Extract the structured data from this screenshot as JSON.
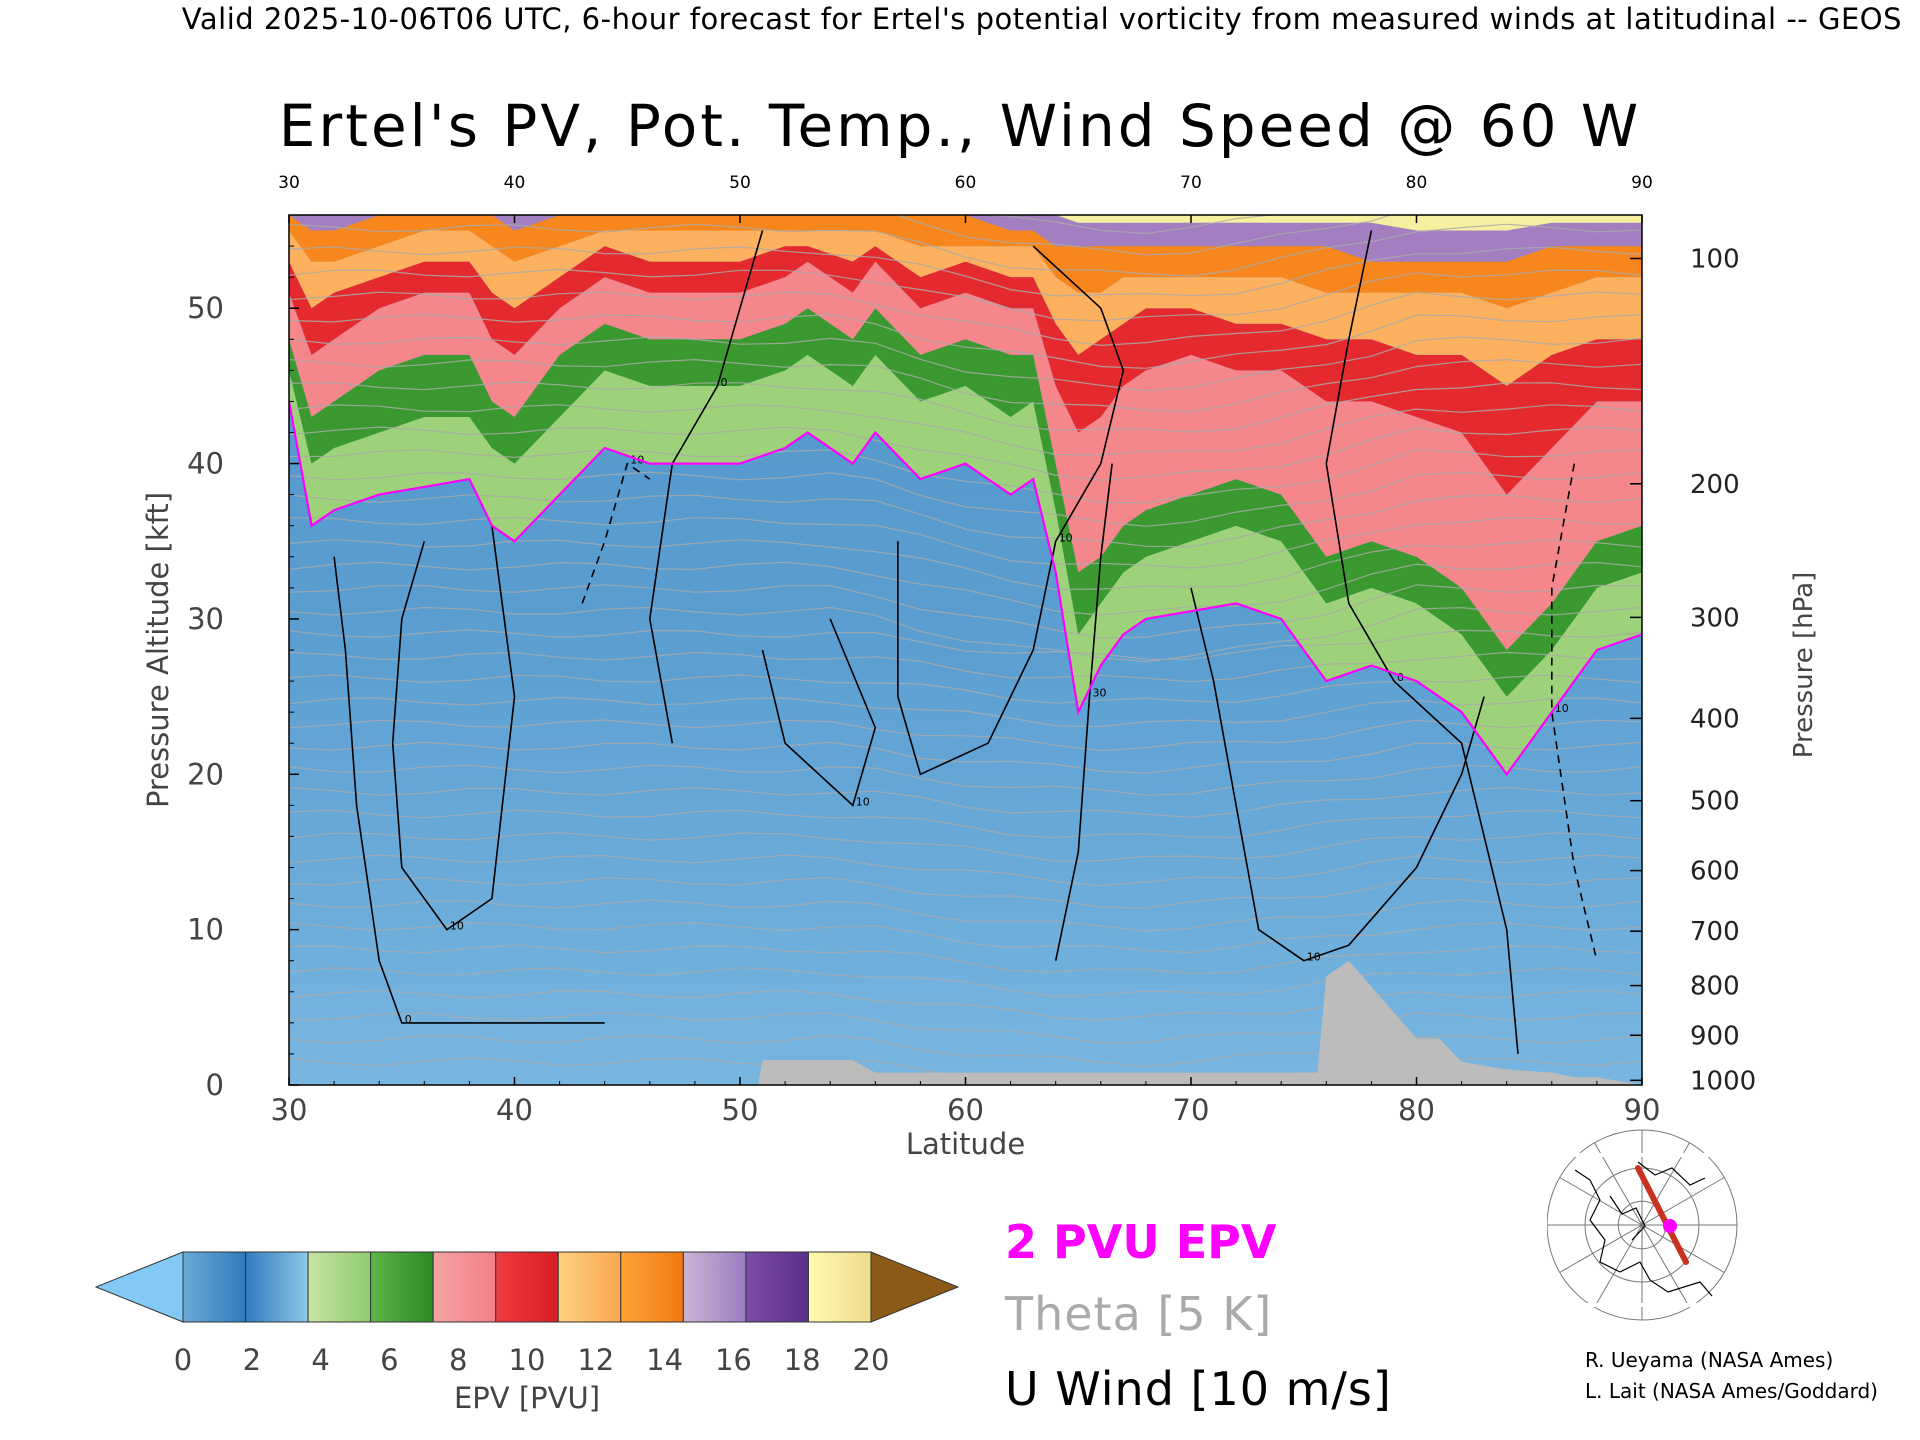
{
  "header": {
    "text": "Valid 2025-10-06T06 UTC, 6-hour forecast for Ertel's potential vorticity from measured winds at latitudinal -- GEOS"
  },
  "chart_data": {
    "type": "heatmap",
    "title": "Ertel's PV, Pot. Temp., Wind Speed @ 60 W",
    "xlabel": "Latitude",
    "ylabel": "Pressure Altitude [kft]",
    "y2label": "Pressure [hPa]",
    "xlim": [
      30,
      90
    ],
    "ylim": [
      0,
      56
    ],
    "x_ticks": [
      30,
      40,
      50,
      60,
      70,
      80,
      90
    ],
    "y_ticks": [
      0,
      10,
      20,
      30,
      40,
      50
    ],
    "pressure_ticks": [
      {
        "label": "100",
        "kft": 53.2
      },
      {
        "label": "200",
        "kft": 38.7
      },
      {
        "label": "300",
        "kft": 30.1
      },
      {
        "label": "400",
        "kft": 23.6
      },
      {
        "label": "500",
        "kft": 18.3
      },
      {
        "label": "600",
        "kft": 13.8
      },
      {
        "label": "700",
        "kft": 9.9
      },
      {
        "label": "800",
        "kft": 6.4
      },
      {
        "label": "900",
        "kft": 3.2
      },
      {
        "label": "1000",
        "kft": 0.3
      }
    ],
    "tropopause_2pvu": {
      "lat": [
        30,
        31,
        32,
        34,
        36,
        38,
        39,
        40,
        42,
        44,
        46,
        48,
        50,
        52,
        53,
        55,
        56,
        58,
        60,
        62,
        63,
        64,
        65,
        66,
        67,
        68,
        70,
        72,
        74,
        76,
        78,
        80,
        82,
        84,
        86,
        88,
        90
      ],
      "kft": [
        44,
        36,
        37,
        38,
        38.5,
        39,
        36,
        35,
        38,
        41,
        40,
        40,
        40,
        41,
        42,
        40,
        42,
        39,
        40,
        38,
        39,
        33,
        24,
        27,
        29,
        30,
        30.5,
        31,
        30,
        26,
        27,
        26,
        24,
        20,
        24,
        28,
        29
      ]
    },
    "epv_bands_kft": [
      {
        "pvu": 4,
        "color": "#9ed27a",
        "top": [
          46,
          40,
          41,
          42,
          43,
          43,
          41,
          40,
          43,
          46,
          45,
          45,
          45,
          46,
          47,
          45,
          47,
          44,
          45,
          43,
          44,
          37,
          29,
          31,
          33,
          34,
          35,
          36,
          35,
          31,
          32,
          31,
          29,
          25,
          28,
          32,
          33
        ]
      },
      {
        "pvu": 6,
        "color": "#3a9a2f",
        "top": [
          48,
          43,
          44,
          46,
          47,
          47,
          44,
          43,
          47,
          49,
          48,
          48,
          48,
          49,
          50,
          48,
          50,
          47,
          48,
          47,
          47,
          40,
          33,
          34,
          36,
          37,
          38,
          39,
          38,
          34,
          35,
          34,
          32,
          28,
          31,
          35,
          36
        ]
      },
      {
        "pvu": 8,
        "color": "#f4868c",
        "top": [
          51,
          47,
          48,
          50,
          51,
          51,
          48,
          47,
          50,
          52,
          51,
          51,
          51,
          52,
          53,
          51,
          53,
          50,
          51,
          50,
          50,
          45,
          42,
          43,
          45,
          46,
          47,
          46,
          46,
          44,
          44,
          43,
          42,
          38,
          41,
          44,
          44
        ]
      },
      {
        "pvu": 10,
        "color": "#e52a2f",
        "top": [
          53,
          50,
          51,
          52,
          53,
          53,
          51,
          50,
          52,
          54,
          53,
          53,
          53,
          54,
          54,
          53,
          54,
          52,
          53,
          52,
          52,
          49,
          47,
          48,
          49,
          50,
          50,
          49,
          49,
          48,
          48,
          47,
          47,
          45,
          47,
          48,
          48
        ]
      },
      {
        "pvu": 12,
        "color": "#fdb15f",
        "top": [
          55,
          53,
          53,
          54,
          55,
          55,
          54,
          53,
          54,
          55,
          55,
          55,
          55,
          55,
          55,
          55,
          55,
          54,
          54,
          54,
          54,
          52,
          51,
          51,
          52,
          52,
          52,
          52,
          52,
          51,
          51,
          51,
          51,
          50,
          51,
          52,
          52
        ]
      },
      {
        "pvu": 14,
        "color": "#f7861c",
        "top": [
          56,
          55,
          55,
          56,
          56,
          56,
          56,
          55,
          56,
          56,
          56,
          56,
          56,
          56,
          56,
          56,
          56,
          56,
          56,
          55,
          55,
          54,
          54,
          54,
          54,
          54,
          54,
          54,
          54,
          54,
          53,
          53,
          53,
          53,
          54,
          54,
          54
        ]
      },
      {
        "pvu": 16,
        "color": "#a37fc2",
        "top": [
          56,
          56,
          56,
          56,
          56,
          56,
          56,
          56,
          56,
          56,
          56,
          56,
          56,
          56,
          56,
          56,
          56,
          56,
          56,
          56,
          56,
          56,
          55.5,
          55.5,
          55.5,
          55.5,
          55.5,
          55.5,
          55.5,
          55.5,
          55.5,
          55,
          55,
          55,
          55.5,
          55.5,
          55.5
        ]
      },
      {
        "pvu": 18,
        "color": "#f4f0a0",
        "top": [
          56,
          56,
          56,
          56,
          56,
          56,
          56,
          56,
          56,
          56,
          56,
          56,
          56,
          56,
          56,
          56,
          56,
          56,
          56,
          56,
          56,
          56,
          56,
          56,
          56,
          56,
          56,
          56,
          56,
          56,
          56,
          56,
          56,
          56,
          56,
          56,
          56
        ]
      }
    ],
    "terrain_kft": {
      "lat": [
        30,
        50.8,
        51,
        55,
        56,
        59,
        60,
        65,
        66,
        72,
        73,
        75.6,
        76,
        77,
        80,
        81,
        82,
        84,
        86,
        87,
        88,
        90
      ],
      "kft": [
        0,
        0,
        1.6,
        1.6,
        0.8,
        0.8,
        0.8,
        0.8,
        0.8,
        0.8,
        0.8,
        0.8,
        7,
        8,
        3,
        3,
        1.5,
        1,
        0.8,
        0.5,
        0.5,
        0
      ]
    },
    "u_wind_contours": [
      {
        "label": "10",
        "style": "solid",
        "pts": [
          [
            36,
            35
          ],
          [
            35,
            30
          ],
          [
            34.6,
            22
          ],
          [
            35,
            14
          ],
          [
            37,
            10
          ],
          [
            39,
            12
          ],
          [
            40,
            25
          ],
          [
            39,
            36
          ]
        ]
      },
      {
        "label": "0",
        "style": "solid",
        "pts": [
          [
            32,
            34
          ],
          [
            32.5,
            28
          ],
          [
            33,
            18
          ],
          [
            34,
            8
          ],
          [
            35,
            4
          ],
          [
            39,
            4
          ],
          [
            41,
            4
          ],
          [
            44,
            4
          ]
        ]
      },
      {
        "label": "0",
        "style": "solid",
        "pts": [
          [
            47,
            22
          ],
          [
            46,
            30
          ],
          [
            47,
            40
          ],
          [
            49,
            45
          ],
          [
            50,
            50
          ],
          [
            51,
            55
          ]
        ]
      },
      {
        "label": "10",
        "style": "solid",
        "pts": [
          [
            51,
            28
          ],
          [
            52,
            22
          ],
          [
            55,
            18
          ],
          [
            56,
            23
          ],
          [
            54,
            30
          ]
        ]
      },
      {
        "label": "10",
        "style": "solid",
        "pts": [
          [
            57,
            35
          ],
          [
            57,
            25
          ],
          [
            58,
            20
          ],
          [
            61,
            22
          ],
          [
            63,
            28
          ],
          [
            64,
            35
          ],
          [
            66,
            40
          ],
          [
            67,
            46
          ],
          [
            66,
            50
          ],
          [
            63,
            54
          ]
        ]
      },
      {
        "label": "30",
        "style": "solid",
        "pts": [
          [
            64,
            8
          ],
          [
            65,
            15
          ],
          [
            65.5,
            25
          ],
          [
            66,
            34
          ],
          [
            66.5,
            40
          ]
        ]
      },
      {
        "label": "10",
        "style": "solid",
        "pts": [
          [
            70,
            32
          ],
          [
            71,
            26
          ],
          [
            72,
            18
          ],
          [
            73,
            10
          ],
          [
            75,
            8
          ],
          [
            77,
            9
          ],
          [
            80,
            14
          ],
          [
            82,
            20
          ],
          [
            83,
            25
          ]
        ]
      },
      {
        "label": "0",
        "style": "solid",
        "pts": [
          [
            78,
            55
          ],
          [
            77,
            48
          ],
          [
            76,
            40
          ],
          [
            77,
            31
          ],
          [
            79,
            26
          ],
          [
            82,
            22
          ],
          [
            84,
            10
          ],
          [
            84.5,
            2
          ]
        ]
      },
      {
        "label": "10",
        "style": "dashed",
        "pts": [
          [
            87,
            40
          ],
          [
            86,
            32
          ],
          [
            86,
            24
          ],
          [
            87,
            14
          ],
          [
            88,
            8
          ]
        ]
      },
      {
        "label": "10",
        "style": "dashed",
        "pts": [
          [
            43,
            31
          ],
          [
            44,
            35
          ],
          [
            45,
            40
          ],
          [
            46,
            39
          ]
        ]
      }
    ],
    "colorbar": {
      "label": "EPV [PVU]",
      "ticks": [
        "0",
        "2",
        "4",
        "6",
        "8",
        "10",
        "12",
        "14",
        "16",
        "18",
        "20"
      ],
      "under_color": "#82c9f6",
      "over_color": "#8b5a17",
      "colors": [
        [
          "#6aaad8",
          "#2f7bbd"
        ],
        [
          "#2f7bbd",
          "#8fc9e8"
        ],
        [
          "#c8e3a5",
          "#8ecb6e"
        ],
        [
          "#5eb548",
          "#2a8a25"
        ],
        [
          "#f5a3a5",
          "#f27f87"
        ],
        [
          "#ee3b40",
          "#d81e24"
        ],
        [
          "#ffd07f",
          "#f9a850"
        ],
        [
          "#ffa33a",
          "#f07a0e"
        ],
        [
          "#cbb3d6",
          "#9b7ec0"
        ],
        [
          "#7a4ca6",
          "#5c2e8c"
        ],
        [
          "#fffab0",
          "#eedc8a"
        ]
      ]
    }
  },
  "legend": {
    "epv": "2 PVU EPV",
    "theta": "Theta [5 K]",
    "uwind": "U Wind [10 m/s]"
  },
  "credits": {
    "line1": "R. Ueyama (NASA Ames)",
    "line2": "L. Lait (NASA Ames/Goddard)"
  },
  "colors": {
    "tropopause": "#ff00ff",
    "theta": "#aaaaaa",
    "terrain": "#bcbcbc",
    "route": "#c8321f",
    "marker": "#ff00ff"
  },
  "inset_map": {
    "icon": "polar-map-icon"
  }
}
